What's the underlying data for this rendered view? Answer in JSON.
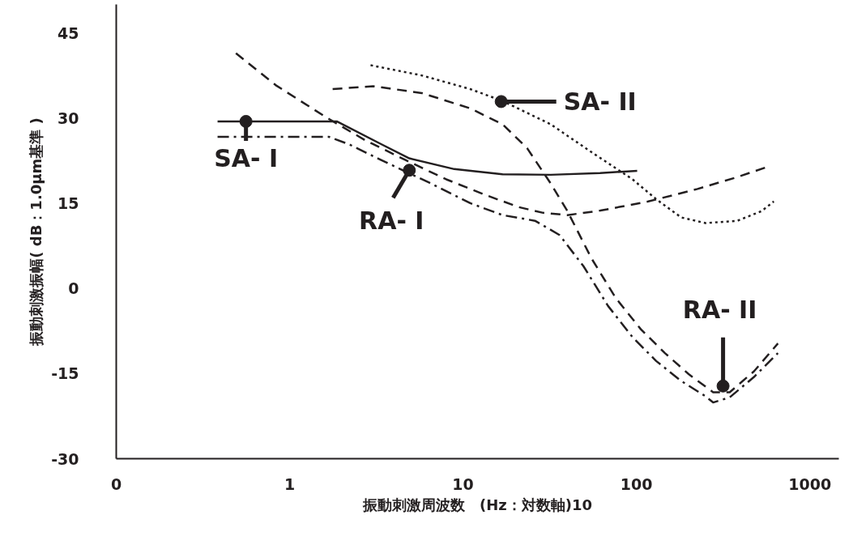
{
  "chart_data": {
    "type": "line",
    "xlabel": "振動刺激周波数　(Hz：対数軸)10",
    "ylabel": "振動刺激振幅( dB：1.0μm基準 )",
    "log": "x",
    "grid": false,
    "marker": "none",
    "xlim": [
      0.1,
      1470
    ],
    "ylim": [
      -30,
      50
    ],
    "xticks": [
      {
        "value": 0.1,
        "label": "0"
      },
      1,
      10,
      100,
      1000
    ],
    "yticks": [
      -30,
      -15,
      0,
      15,
      30,
      45
    ],
    "series": [
      {
        "color": "#231f20",
        "line_style": "solid",
        "x": [
          0.384,
          1.87,
          3.37,
          4.9,
          8.9,
          16.9,
          32,
          61.7,
          101
        ],
        "values": [
          29.4,
          29.4,
          25.4,
          22.9,
          21,
          20.1,
          20,
          20.3,
          20.7
        ]
      },
      {
        "color": "#231f20",
        "line_style": "dashdot",
        "x": [
          0.384,
          1.68,
          2.19,
          3.37,
          6.4,
          11,
          16.9,
          26,
          36,
          49.5,
          68.6,
          95,
          130,
          181,
          250,
          277,
          345,
          477,
          655
        ],
        "values": [
          26.7,
          26.7,
          25.4,
          22.6,
          18.6,
          15,
          12.9,
          11.9,
          9.4,
          3.9,
          -3.1,
          -8.6,
          -12.8,
          -16.3,
          -19,
          -20.1,
          -19.2,
          -15.6,
          -11.4
        ]
      },
      {
        "color": "#231f20",
        "line_style": "dashed",
        "x": [
          0.49,
          0.83,
          1.59,
          2.72,
          4.66,
          8,
          13.6,
          21,
          29,
          40,
          62,
          117,
          225,
          382,
          557
        ],
        "values": [
          41.4,
          35.8,
          30.3,
          26.1,
          22.6,
          19.2,
          16.4,
          14.3,
          13.3,
          12.9,
          13.7,
          15.3,
          17.5,
          19.6,
          21.3
        ]
      },
      {
        "color": "#231f20",
        "line_style": "dashed",
        "x": [
          1.77,
          3.03,
          5.78,
          11,
          16.9,
          23.4,
          32,
          40,
          55,
          76,
          106,
          146,
          200,
          277,
          345,
          477,
          655
        ],
        "values": [
          35.1,
          35.6,
          34.4,
          31.7,
          28.9,
          24.7,
          18.5,
          13.6,
          5.3,
          -1.7,
          -7.2,
          -11.4,
          -15.1,
          -18.3,
          -18.3,
          -14.6,
          -9.7
        ]
      },
      {
        "color": "#231f20",
        "line_style": "dotted",
        "x": [
          2.93,
          5.78,
          11,
          16.9,
          32,
          55,
          95,
          130,
          181,
          250,
          382,
          527,
          620
        ],
        "values": [
          39.3,
          37.5,
          35.1,
          33,
          28.9,
          24,
          19.2,
          15.7,
          12.5,
          11.5,
          11.9,
          13.6,
          15.3
        ]
      }
    ],
    "annotations": [
      {
        "text": "SA- I",
        "x": 0.56,
        "y": 29.4
      },
      {
        "text": "RA- I",
        "x": 4.9,
        "y": 20.8
      },
      {
        "text": "SA- II",
        "x": 16.6,
        "y": 32.9
      },
      {
        "text": "RA- II",
        "x": 316,
        "y": -17.2
      }
    ]
  }
}
